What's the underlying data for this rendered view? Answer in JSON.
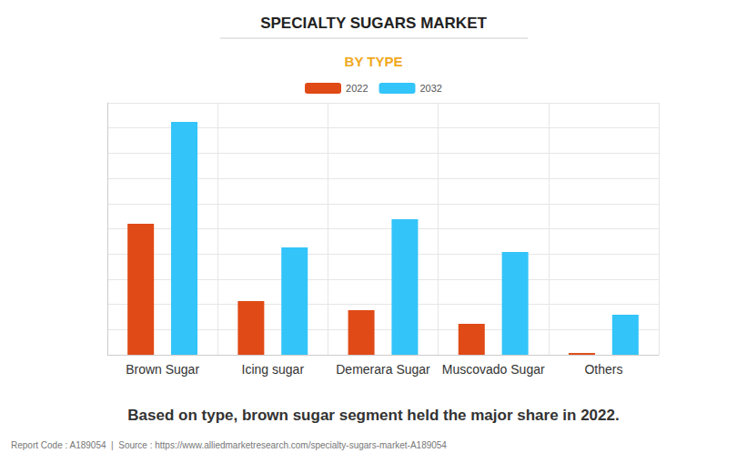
{
  "chart_data": {
    "type": "bar",
    "title": "SPECIALTY SUGARS MARKET",
    "subtitle": "BY TYPE",
    "caption": "Based on type, brown sugar segment held the major share in 2022.",
    "footer": "Report Code : A189054  |  Source : https://www.alliedmarketresearch.com/specialty-sugars-market-A189054",
    "categories": [
      "Brown Sugar",
      "Icing sugar",
      "Demerara Sugar",
      "Muscovado Sugar",
      "Others"
    ],
    "series": [
      {
        "name": "2022",
        "color": "#e04a16",
        "values": [
          5.2,
          2.13,
          1.77,
          1.23,
          0.07
        ]
      },
      {
        "name": "2032",
        "color": "#33c4f9",
        "values": [
          9.24,
          4.26,
          5.38,
          4.08,
          1.59
        ]
      }
    ],
    "ylim": [
      0,
      10
    ],
    "yticks": [
      0,
      1,
      2,
      3,
      4,
      5,
      6,
      7,
      8,
      9,
      10
    ],
    "grid": true,
    "legend": "top",
    "tick_labels": "x",
    "data_labels": false
  }
}
